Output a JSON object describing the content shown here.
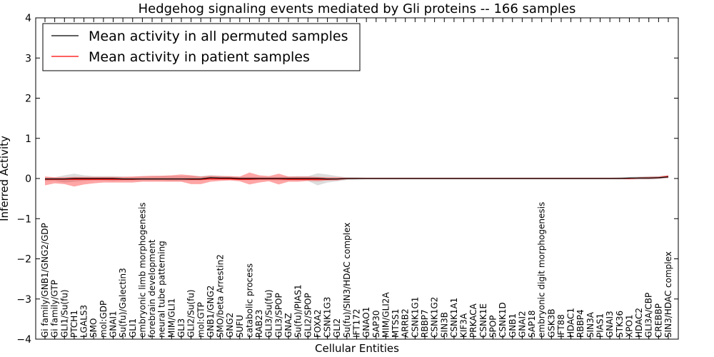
{
  "chart_data": {
    "type": "line",
    "title": "Hedgehog signaling events mediated by Gli proteins -- 166 samples",
    "xlabel": "Cellular Entities",
    "ylabel": "Inferred Activity",
    "ylim": [
      -4,
      4
    ],
    "yticks": [
      "−4",
      "−3",
      "−2",
      "−1",
      "0",
      "1",
      "2",
      "3",
      "4"
    ],
    "grid": false,
    "legend_position": "top-left",
    "colors": {
      "permuted": "#000000",
      "patient": "#ff0000",
      "patient_band": "#ff0000",
      "permuted_band": "#aaaaaa"
    },
    "categories": [
      "Gi family/GNB1/GNG2/GDP",
      "Gi family/GTP",
      "GLI1/Su(fu)",
      "PTCH1",
      "LGALS3",
      "SMO",
      "mol:GDP",
      "GNAI1",
      "Su(fu)/Galectin3",
      "GLI1",
      "embryonic limb morphogenesis",
      "forebrain development",
      "neural tube patterning",
      "MIM/GLI1",
      "GLI3",
      "GLI2/Su(fu)",
      "mol:GTP",
      "GNB1/GNG2",
      "SMO/beta Arrestin2",
      "GNG2",
      "SUFU",
      "catabolic process",
      "RAB23",
      "GLI3/Su(fu)",
      "GLI3/SPOP",
      "GNAZ",
      "Su(fu)/PIAS1",
      "GLI2/SPOP",
      "FOXA2",
      "CSNK1G3",
      "GLI2",
      "Su(fu)/SIN3/HDAC complex",
      "IFT172",
      "GNAO1",
      "SAP30",
      "MIM/GLI2A",
      "MTSS1",
      "ARRB2",
      "CSNK1G1",
      "RBBP7",
      "CSNK1G2",
      "SIN3B",
      "CSNK1A1",
      "KIF3A",
      "PRKACA",
      "CSNK1E",
      "SPOP",
      "CSNK1D",
      "GNB1",
      "GNAI2",
      "SAP18",
      "embryonic digit morphogenesis",
      "GSK3B",
      "IFT88",
      "HDAC1",
      "RBBP4",
      "SIN3A",
      "PIAS1",
      "GNAI3",
      "STK36",
      "XPO1",
      "HDAC2",
      "GLI3A/CBP",
      "CREBBP",
      "SIN3/HDAC complex"
    ],
    "series": [
      {
        "name": "Mean activity in all permuted samples",
        "values": [
          -0.01,
          -0.01,
          -0.01,
          0,
          0,
          0,
          0,
          0,
          -0.01,
          -0.01,
          -0.01,
          -0.01,
          -0.01,
          -0.01,
          -0.01,
          -0.01,
          -0.01,
          0.02,
          0.01,
          0.01,
          0,
          0,
          0,
          0,
          0,
          0,
          0,
          0,
          0,
          -0.01,
          -0.01,
          0,
          0,
          0,
          0,
          0,
          0,
          0,
          0,
          0,
          0,
          0,
          0,
          0,
          0,
          0,
          0,
          0,
          0,
          0,
          0,
          0,
          0,
          0,
          0,
          0,
          0,
          0,
          0,
          0,
          0.01,
          0.01,
          0.01,
          0.02,
          0.04
        ],
        "band_lower": [
          -0.07,
          -0.06,
          -0.1,
          -0.08,
          -0.06,
          -0.05,
          -0.05,
          -0.06,
          -0.05,
          -0.05,
          -0.05,
          -0.05,
          -0.05,
          -0.06,
          -0.06,
          -0.05,
          -0.05,
          -0.02,
          -0.02,
          -0.03,
          -0.04,
          -0.04,
          -0.04,
          -0.04,
          -0.05,
          -0.05,
          -0.05,
          -0.06,
          -0.17,
          -0.1,
          -0.07,
          -0.04,
          -0.03,
          -0.02,
          -0.02,
          -0.02,
          -0.02,
          -0.02,
          -0.02,
          -0.02,
          -0.02,
          -0.02,
          -0.02,
          -0.02,
          -0.02,
          -0.02,
          -0.02,
          -0.02,
          -0.02,
          -0.02,
          -0.02,
          -0.02,
          -0.02,
          -0.02,
          -0.02,
          -0.02,
          -0.02,
          -0.02,
          -0.02,
          -0.02,
          -0.03,
          -0.03,
          -0.03,
          -0.02,
          0.0
        ],
        "band_upper": [
          0.03,
          0.03,
          0.08,
          0.12,
          0.08,
          0.06,
          0.06,
          0.06,
          0.05,
          0.04,
          0.05,
          0.05,
          0.06,
          0.06,
          0.06,
          0.06,
          0.06,
          0.08,
          0.07,
          0.05,
          0.04,
          0.04,
          0.04,
          0.04,
          0.04,
          0.05,
          0.06,
          0.06,
          0.13,
          0.1,
          0.06,
          0.03,
          0.03,
          0.02,
          0.02,
          0.02,
          0.02,
          0.02,
          0.02,
          0.02,
          0.02,
          0.02,
          0.02,
          0.02,
          0.02,
          0.02,
          0.02,
          0.02,
          0.02,
          0.02,
          0.02,
          0.02,
          0.02,
          0.02,
          0.02,
          0.02,
          0.02,
          0.02,
          0.02,
          0.03,
          0.04,
          0.05,
          0.06,
          0.06,
          0.08
        ]
      },
      {
        "name": "Mean activity in patient samples",
        "values": [
          -0.02,
          -0.02,
          -0.02,
          -0.02,
          -0.02,
          -0.02,
          -0.02,
          -0.02,
          -0.02,
          -0.02,
          -0.01,
          -0.01,
          -0.01,
          -0.01,
          -0.01,
          -0.02,
          -0.02,
          -0.01,
          -0.01,
          -0.01,
          -0.02,
          -0.02,
          -0.01,
          -0.01,
          -0.01,
          -0.02,
          -0.02,
          -0.02,
          -0.02,
          -0.02,
          -0.01,
          0,
          0,
          0,
          0,
          0,
          0,
          0,
          0,
          0,
          0,
          0,
          0,
          0,
          0,
          0,
          0,
          0,
          0,
          0,
          0,
          0,
          0,
          0,
          0,
          0,
          0,
          0,
          0,
          0,
          0,
          0.01,
          0.01,
          0.02,
          0.05
        ],
        "band_lower": [
          -0.17,
          -0.12,
          -0.14,
          -0.2,
          -0.15,
          -0.12,
          -0.1,
          -0.1,
          -0.1,
          -0.1,
          -0.08,
          -0.08,
          -0.08,
          -0.08,
          -0.08,
          -0.14,
          -0.14,
          -0.08,
          -0.06,
          -0.05,
          -0.07,
          -0.15,
          -0.1,
          -0.07,
          -0.15,
          -0.08,
          -0.08,
          -0.06,
          -0.07,
          -0.05,
          -0.05,
          -0.02,
          -0.01,
          -0.01,
          -0.01,
          -0.01,
          -0.01,
          -0.01,
          -0.01,
          -0.01,
          -0.01,
          -0.01,
          -0.01,
          -0.01,
          -0.01,
          -0.01,
          -0.01,
          -0.01,
          -0.01,
          -0.01,
          -0.01,
          -0.01,
          -0.01,
          -0.01,
          -0.01,
          -0.01,
          -0.01,
          -0.01,
          -0.01,
          -0.01,
          -0.01,
          -0.01,
          -0.01,
          0.0,
          0.02
        ],
        "band_upper": [
          0.05,
          0.03,
          0.03,
          0.04,
          0.04,
          0.04,
          0.04,
          0.04,
          0.04,
          0.05,
          0.06,
          0.07,
          0.07,
          0.08,
          0.1,
          0.08,
          0.05,
          0.07,
          0.06,
          0.06,
          0.05,
          0.15,
          0.08,
          0.06,
          0.12,
          0.05,
          0.05,
          0.05,
          0.04,
          0.03,
          0.03,
          0.02,
          0.02,
          0.02,
          0.02,
          0.02,
          0.02,
          0.02,
          0.02,
          0.02,
          0.02,
          0.02,
          0.02,
          0.02,
          0.02,
          0.02,
          0.02,
          0.02,
          0.02,
          0.02,
          0.02,
          0.02,
          0.02,
          0.02,
          0.02,
          0.02,
          0.02,
          0.02,
          0.02,
          0.02,
          0.02,
          0.03,
          0.04,
          0.05,
          0.08
        ]
      }
    ]
  }
}
